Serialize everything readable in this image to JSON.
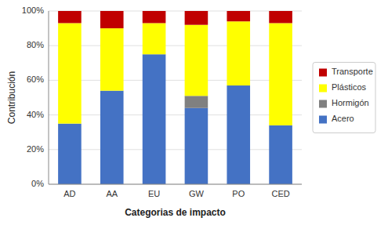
{
  "chart_data": {
    "type": "bar",
    "stacked": true,
    "categories": [
      "AD",
      "AA",
      "EU",
      "GW",
      "PO",
      "CED"
    ],
    "series": [
      {
        "name": "Acero",
        "color": "#4472C4",
        "values": [
          35,
          54,
          75,
          44,
          57,
          34
        ]
      },
      {
        "name": "Hormigón",
        "color": "#808080",
        "values": [
          0,
          0,
          0,
          7,
          0,
          0
        ]
      },
      {
        "name": "Plásticos",
        "color": "#FFFF00",
        "values": [
          58,
          36,
          18,
          41,
          37,
          59
        ]
      },
      {
        "name": "Transporte",
        "color": "#C00000",
        "values": [
          7,
          10,
          7,
          8,
          6,
          7
        ]
      }
    ],
    "ylabel": "Contribución",
    "xlabel": "Categorias de impacto",
    "ylim": [
      0,
      100
    ],
    "yticks": [
      {
        "value": 0,
        "label": "0%"
      },
      {
        "value": 20,
        "label": "20%"
      },
      {
        "value": 40,
        "label": "40%"
      },
      {
        "value": 60,
        "label": "60%"
      },
      {
        "value": 80,
        "label": "80%"
      },
      {
        "value": 100,
        "label": "100%"
      }
    ],
    "grid": true,
    "legend": "right"
  }
}
